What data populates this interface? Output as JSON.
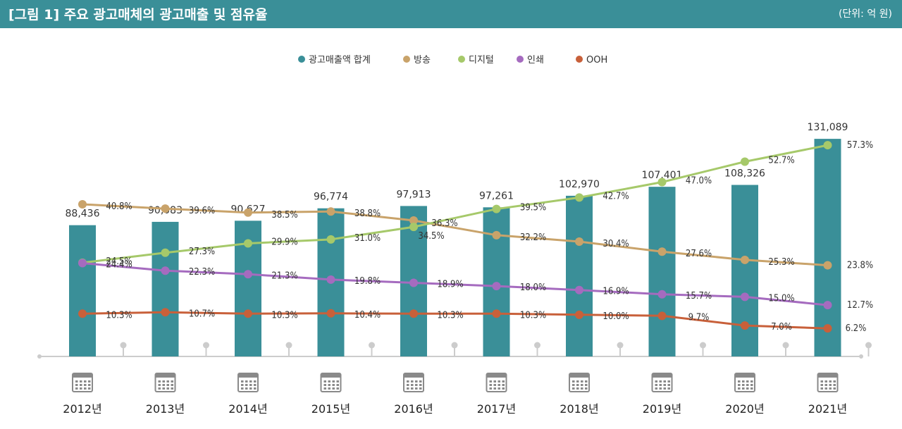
{
  "header": {
    "title": "[그림 1]  주요 광고매체의 광고매출 및 점유율",
    "unit": "(단위: 억 원)"
  },
  "colors": {
    "bar": "#3a8f98",
    "broadcast": "#c9a36a",
    "digital": "#a6c96a",
    "print": "#a56bbf",
    "ooh": "#c8603a",
    "axis": "#cccccc"
  },
  "chart_data": {
    "type": "bar+line",
    "categories": [
      "2012년",
      "2013년",
      "2014년",
      "2015년",
      "2016년",
      "2017년",
      "2018년",
      "2019년",
      "2020년",
      "2021년"
    ],
    "bar_series": {
      "name": "광고매출액 합계",
      "values": [
        88436,
        90083,
        90627,
        96774,
        97913,
        97261,
        102970,
        107401,
        108326,
        131089
      ],
      "labels": [
        "88,436",
        "90,083",
        "90,627",
        "96,774",
        "97,913",
        "97,261",
        "102,970",
        "107,401",
        "108,326",
        "131,089"
      ]
    },
    "line_series": [
      {
        "name": "방송",
        "key": "broadcast",
        "values": [
          40.8,
          39.6,
          38.5,
          38.8,
          36.3,
          32.2,
          30.4,
          27.6,
          25.3,
          23.8
        ],
        "labels": [
          "40.8%",
          "39.6%",
          "38.5%",
          "38.8%",
          "36.3%",
          "32.2%",
          "30.4%",
          "27.6%",
          "25.3%",
          "23.8%"
        ]
      },
      {
        "name": "디지털",
        "key": "digital",
        "values": [
          24.5,
          27.3,
          29.9,
          31.0,
          34.5,
          39.5,
          42.7,
          47.0,
          52.7,
          57.3
        ],
        "labels": [
          "24.5%",
          "27.3%",
          "29.9%",
          "31.0%",
          "34.5%",
          "39.5%",
          "42.7%",
          "47.0%",
          "52.7%",
          "57.3%"
        ]
      },
      {
        "name": "인쇄",
        "key": "print",
        "values": [
          24.4,
          22.3,
          21.3,
          19.8,
          18.9,
          18.0,
          16.9,
          15.7,
          15.0,
          12.7
        ],
        "labels": [
          "24.4%",
          "22.3%",
          "21.3%",
          "19.8%",
          "18.9%",
          "18.0%",
          "16.9%",
          "15.7%",
          "15.0%",
          "12.7%"
        ]
      },
      {
        "name": "OOH",
        "key": "ooh",
        "values": [
          10.3,
          10.7,
          10.3,
          10.4,
          10.3,
          10.3,
          10.0,
          9.7,
          7.0,
          6.2
        ],
        "labels": [
          "10.3%",
          "10.7%",
          "10.3%",
          "10.4%",
          "10.3%",
          "10.3%",
          "10.0%",
          "9.7%",
          "7.0%",
          "6.2%"
        ]
      }
    ],
    "legend": [
      "광고매출액 합계",
      "방송",
      "디지털",
      "인쇄",
      "OOH"
    ],
    "legend_position": "top-center",
    "grid": false
  }
}
